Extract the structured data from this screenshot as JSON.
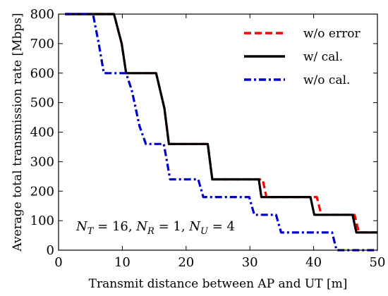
{
  "chart_data": {
    "type": "line",
    "title": "",
    "xlabel": "Transmit distance between AP and UT [m]",
    "ylabel": "Average total transmission rate [Mbps]",
    "xlim": [
      0,
      50
    ],
    "ylim": [
      0,
      800
    ],
    "xticks": [
      0,
      10,
      20,
      30,
      40,
      50
    ],
    "yticks": [
      0,
      100,
      200,
      300,
      400,
      500,
      600,
      700,
      800
    ],
    "grid": false,
    "legend_placement": "top-right",
    "annotation": {
      "parts": [
        {
          "text": "N",
          "style": "italic"
        },
        {
          "text": "T",
          "style": "italic-sub"
        },
        {
          "text": " = 16, ",
          "style": "normal"
        },
        {
          "text": "N",
          "style": "italic"
        },
        {
          "text": "R",
          "style": "italic-sub"
        },
        {
          "text": " = 1, ",
          "style": "normal"
        },
        {
          "text": "N",
          "style": "italic"
        },
        {
          "text": "U",
          "style": "italic-sub"
        },
        {
          "text": " = 4",
          "style": "normal"
        }
      ]
    },
    "series": [
      {
        "name": "w/o error",
        "color": "#ff0000",
        "dash": "dashed",
        "x": [
          1,
          8.7,
          9.9,
          10.6,
          11.3,
          15.3,
          16.6,
          17.3,
          17.7,
          23.4,
          24.1,
          32.0,
          32.6,
          40.5,
          41.2,
          46.4,
          47.1,
          50
        ],
        "y": [
          800,
          800,
          700,
          600,
          600,
          600,
          480,
          360,
          360,
          360,
          240,
          240,
          180,
          180,
          120,
          120,
          60,
          60
        ]
      },
      {
        "name": "w/ cal.",
        "color": "#000000",
        "dash": "solid",
        "x": [
          1,
          8.7,
          9.9,
          10.6,
          11.3,
          15.3,
          16.6,
          17.3,
          17.7,
          23.4,
          24.1,
          31.4,
          31.8,
          39.5,
          40.1,
          46.1,
          46.7,
          50
        ],
        "y": [
          800,
          800,
          700,
          600,
          600,
          600,
          480,
          360,
          360,
          360,
          240,
          240,
          180,
          180,
          120,
          120,
          60,
          60
        ]
      },
      {
        "name": "w/o cal.",
        "color": "#0000cc",
        "dash": "dashdot",
        "x": [
          1,
          5.4,
          6.3,
          7.1,
          10.6,
          11.5,
          12.7,
          13.7,
          16.5,
          17.5,
          21.9,
          22.7,
          29.9,
          30.7,
          34.1,
          34.9,
          42.9,
          43.6,
          50
        ],
        "y": [
          800,
          800,
          700,
          600,
          600,
          540,
          420,
          360,
          360,
          240,
          240,
          180,
          180,
          120,
          120,
          60,
          60,
          0,
          0
        ]
      }
    ]
  }
}
